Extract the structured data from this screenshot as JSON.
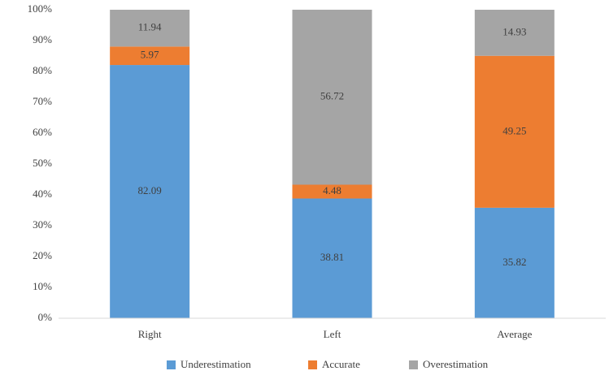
{
  "chart_data": {
    "type": "stacked_bar",
    "categories": [
      "Right",
      "Left",
      "Average"
    ],
    "series": [
      {
        "name": "Underestimation",
        "color": "#5b9bd5",
        "values": [
          82.09,
          38.81,
          35.82
        ]
      },
      {
        "name": "Accurate",
        "color": "#ed7d31",
        "values": [
          5.97,
          4.48,
          49.25
        ]
      },
      {
        "name": "Overestimation",
        "color": "#a5a5a5",
        "values": [
          11.94,
          56.72,
          14.93
        ]
      }
    ],
    "ylim": [
      0,
      100
    ],
    "yticks": [
      {
        "value": 0,
        "label": "0%"
      },
      {
        "value": 10,
        "label": "10%"
      },
      {
        "value": 20,
        "label": "20%"
      },
      {
        "value": 30,
        "label": "30%"
      },
      {
        "value": 40,
        "label": "40%"
      },
      {
        "value": 50,
        "label": "50%"
      },
      {
        "value": 60,
        "label": "60%"
      },
      {
        "value": 70,
        "label": "70%"
      },
      {
        "value": 80,
        "label": "80%"
      },
      {
        "value": 90,
        "label": "90%"
      },
      {
        "value": 100,
        "label": "100%"
      }
    ],
    "grid": false,
    "legend": "bottom"
  }
}
